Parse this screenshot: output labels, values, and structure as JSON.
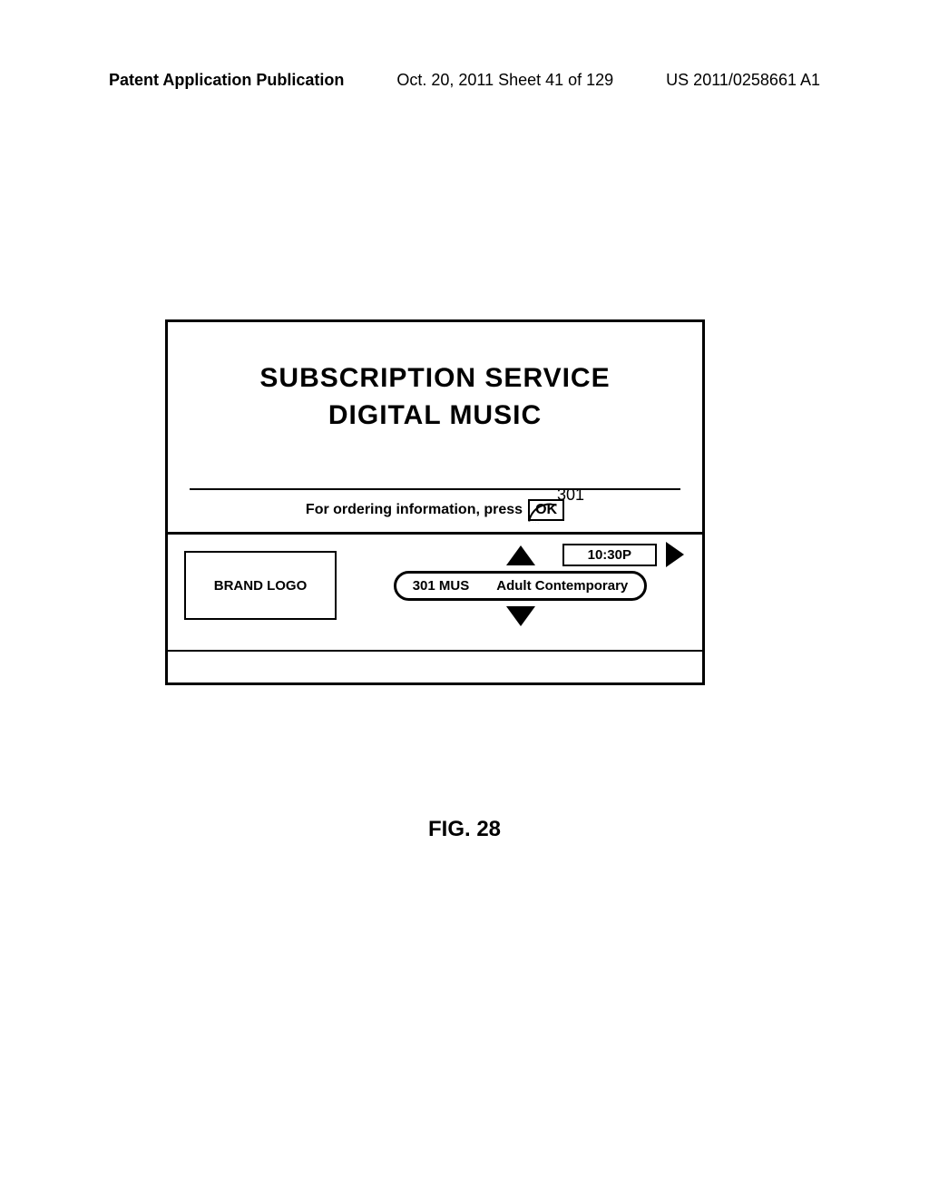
{
  "header": {
    "left": "Patent Application Publication",
    "center": "Oct. 20, 2011  Sheet 41 of 129",
    "right": "US 2011/0258661 A1"
  },
  "title": {
    "line1": "SUBSCRIPTION SERVICE",
    "line2": "DIGITAL MUSIC"
  },
  "callout_ref": "301",
  "order": {
    "text": "For ordering information, press",
    "button": "OK"
  },
  "guide": {
    "brand": "BRAND LOGO",
    "channel_num": "301 MUS",
    "channel_name": "Adult Contemporary",
    "time": "10:30P"
  },
  "caption": "FIG. 28"
}
